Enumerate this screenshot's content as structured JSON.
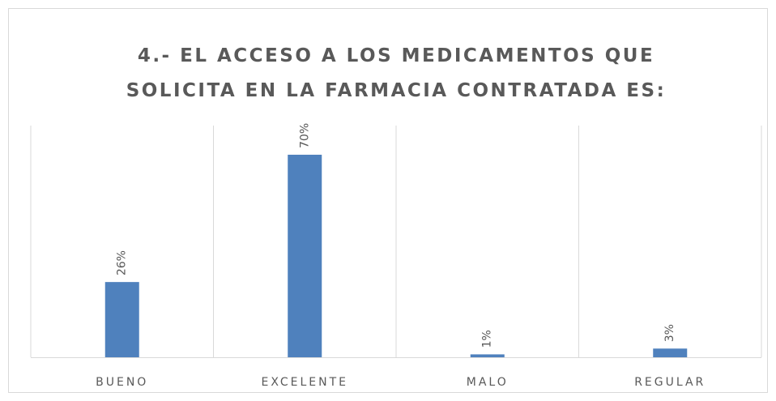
{
  "chart_data": {
    "type": "bar",
    "title": [
      "4.- EL ACCESO A LOS MEDICAMENTOS QUE",
      "SOLICITA EN LA FARMACIA CONTRATADA ES:"
    ],
    "categories": [
      "BUENO",
      "EXCELENTE",
      "MALO",
      "REGULAR"
    ],
    "values": [
      26,
      70,
      1,
      3
    ],
    "value_labels": [
      "26%",
      "70%",
      "1%",
      "3%"
    ],
    "color": "#4f81bd"
  }
}
